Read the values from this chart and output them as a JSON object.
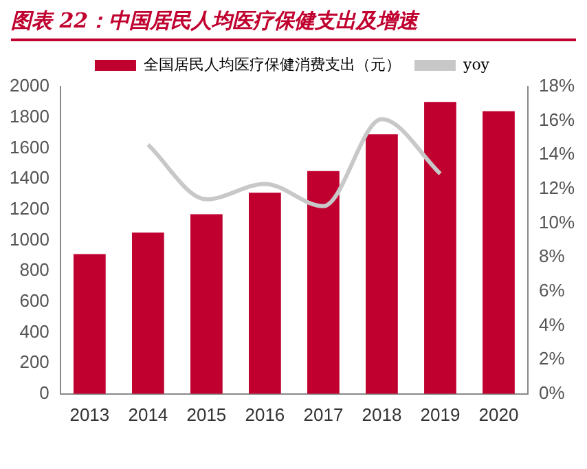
{
  "chart_data": {
    "type": "bar",
    "title": "图表 22：中国居民人均医疗保健支出及增速",
    "categories": [
      "2013",
      "2014",
      "2015",
      "2016",
      "2017",
      "2018",
      "2019",
      "2020"
    ],
    "series": [
      {
        "name": "全国居民人均医疗保健消费支出（元）",
        "color": "#c0002f",
        "values": [
          910,
          1050,
          1170,
          1310,
          1450,
          1690,
          1900,
          1840
        ]
      },
      {
        "name": "yoy",
        "type": "line",
        "axis": "y2",
        "color": "#c8c8c8",
        "values": [
          null,
          14.6,
          11.4,
          12.3,
          11.0,
          16.1,
          12.9,
          null
        ]
      }
    ],
    "ylim": [
      0,
      2000
    ],
    "yticks": [
      0,
      200,
      400,
      600,
      800,
      1000,
      1200,
      1400,
      1600,
      1800,
      2000
    ],
    "y2lim": [
      0,
      18
    ],
    "y2ticks": [
      {
        "value": 0,
        "label": "0%"
      },
      {
        "value": 2,
        "label": "2%"
      },
      {
        "value": 4,
        "label": "4%"
      },
      {
        "value": 6,
        "label": "6%"
      },
      {
        "value": 8,
        "label": "8%"
      },
      {
        "value": 10,
        "label": "10%"
      },
      {
        "value": 12,
        "label": "12%"
      },
      {
        "value": 14,
        "label": "14%"
      },
      {
        "value": 16,
        "label": "16%"
      },
      {
        "value": 18,
        "label": "18%"
      }
    ],
    "grid": false,
    "legend": "top",
    "marker": "none"
  }
}
